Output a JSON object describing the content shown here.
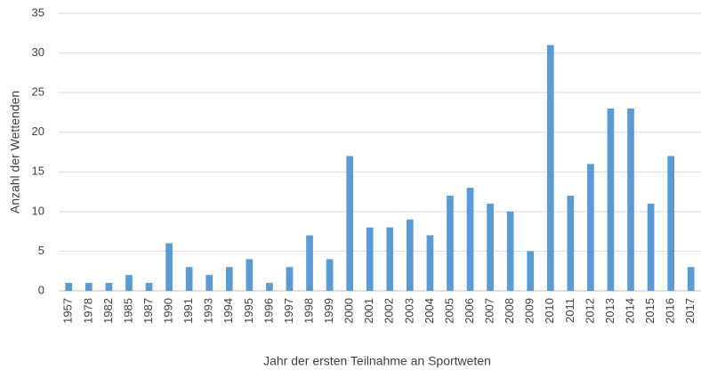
{
  "chart_data": {
    "type": "bar",
    "xlabel": "Jahr der ersten Teilnahme an Sportweten",
    "ylabel": "Anzahl der Wettenden",
    "categories": [
      "1957",
      "1978",
      "1982",
      "1985",
      "1987",
      "1990",
      "1991",
      "1993",
      "1994",
      "1995",
      "1996",
      "1997",
      "1998",
      "1999",
      "2000",
      "2001",
      "2002",
      "2003",
      "2004",
      "2005",
      "2006",
      "2007",
      "2008",
      "2009",
      "2010",
      "2011",
      "2012",
      "2013",
      "2014",
      "2015",
      "2016",
      "2017"
    ],
    "values": [
      1,
      1,
      1,
      2,
      1,
      6,
      3,
      2,
      3,
      4,
      1,
      3,
      7,
      4,
      17,
      8,
      8,
      9,
      7,
      12,
      13,
      11,
      10,
      5,
      31,
      12,
      16,
      23,
      23,
      11,
      17,
      3
    ],
    "color": "#5b9bd5",
    "ylim": [
      0,
      35
    ],
    "yticks": [
      0,
      5,
      10,
      15,
      20,
      25,
      30,
      35
    ],
    "grid": true
  }
}
